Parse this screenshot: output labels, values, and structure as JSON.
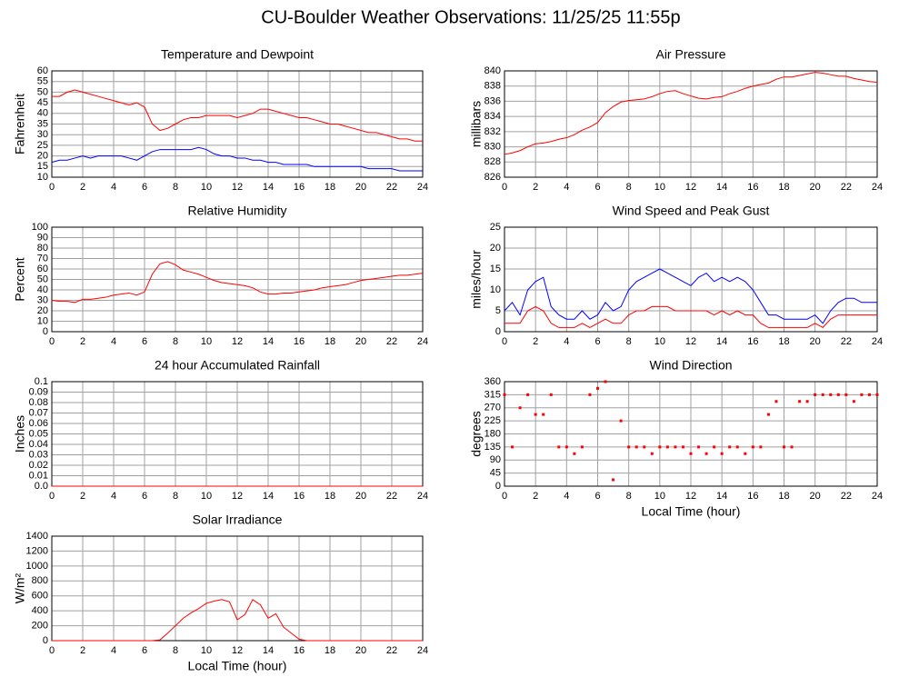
{
  "title": "CU-Boulder Weather Observations: 11/25/25 11:55p",
  "chart_data": [
    {
      "type": "line",
      "title": "Temperature and Dewpoint",
      "ylabel": "Fahrenheit",
      "x": [
        0,
        0.5,
        1,
        1.5,
        2,
        2.5,
        3,
        3.5,
        4,
        4.5,
        5,
        5.5,
        6,
        6.5,
        7,
        7.5,
        8,
        8.5,
        9,
        9.5,
        10,
        10.5,
        11,
        11.5,
        12,
        12.5,
        13,
        13.5,
        14,
        14.5,
        15,
        15.5,
        16,
        16.5,
        17,
        17.5,
        18,
        18.5,
        19,
        19.5,
        20,
        20.5,
        21,
        21.5,
        22,
        22.5,
        23,
        23.5,
        24
      ],
      "series": [
        {
          "color": "#ff0000",
          "values": [
            48,
            48,
            50,
            51,
            50,
            49,
            48,
            47,
            46,
            45,
            44,
            45,
            43,
            35,
            32,
            33,
            35,
            37,
            38,
            38,
            39,
            39,
            39,
            39,
            38,
            39,
            40,
            42,
            42,
            41,
            40,
            39,
            38,
            38,
            37,
            36,
            35,
            35,
            34,
            33,
            32,
            31,
            31,
            30,
            29,
            28,
            28,
            27,
            27
          ]
        },
        {
          "color": "#0000ff",
          "values": [
            17,
            18,
            18,
            19,
            20,
            19,
            20,
            20,
            20,
            20,
            19,
            18,
            20,
            22,
            23,
            23,
            23,
            23,
            23,
            24,
            23,
            21,
            20,
            20,
            19,
            19,
            18,
            18,
            17,
            17,
            16,
            16,
            16,
            16,
            15,
            15,
            15,
            15,
            15,
            15,
            15,
            14,
            14,
            14,
            14,
            13,
            13,
            13,
            13
          ]
        }
      ],
      "xlim": [
        0,
        24
      ],
      "xticks": [
        0,
        2,
        4,
        6,
        8,
        10,
        12,
        14,
        16,
        18,
        20,
        22,
        24
      ],
      "ylim": [
        10,
        60
      ],
      "yticks": [
        10,
        15,
        20,
        25,
        30,
        35,
        40,
        45,
        50,
        55,
        60
      ],
      "grid": true
    },
    {
      "type": "line",
      "title": "Air Pressure",
      "ylabel": "millibars",
      "x": [
        0,
        0.5,
        1,
        1.5,
        2,
        2.5,
        3,
        3.5,
        4,
        4.5,
        5,
        5.5,
        6,
        6.5,
        7,
        7.5,
        8,
        8.5,
        9,
        9.5,
        10,
        10.5,
        11,
        11.5,
        12,
        12.5,
        13,
        13.5,
        14,
        14.5,
        15,
        15.5,
        16,
        16.5,
        17,
        17.5,
        18,
        18.5,
        19,
        19.5,
        20,
        20.5,
        21,
        21.5,
        22,
        22.5,
        23,
        23.5,
        24
      ],
      "series": [
        {
          "color": "#ff0000",
          "values": [
            829,
            829.2,
            829.5,
            830,
            830.4,
            830.5,
            830.7,
            831,
            831.2,
            831.6,
            832.2,
            832.6,
            833.2,
            834.5,
            835.3,
            835.9,
            836.1,
            836.2,
            836.3,
            836.6,
            837,
            837.3,
            837.4,
            837,
            836.7,
            836.4,
            836.3,
            836.5,
            836.6,
            837,
            837.3,
            837.7,
            838,
            838.2,
            838.4,
            838.9,
            839.2,
            839.2,
            839.4,
            839.6,
            839.8,
            839.7,
            839.5,
            839.3,
            839.3,
            839,
            838.8,
            838.6,
            838.5
          ]
        }
      ],
      "xlim": [
        0,
        24
      ],
      "xticks": [
        0,
        2,
        4,
        6,
        8,
        10,
        12,
        14,
        16,
        18,
        20,
        22,
        24
      ],
      "ylim": [
        826,
        840
      ],
      "yticks": [
        826,
        828,
        830,
        832,
        834,
        836,
        838,
        840
      ],
      "grid": true
    },
    {
      "type": "line",
      "title": "Relative Humidity",
      "ylabel": "Percent",
      "x": [
        0,
        0.5,
        1,
        1.5,
        2,
        2.5,
        3,
        3.5,
        4,
        4.5,
        5,
        5.5,
        6,
        6.5,
        7,
        7.5,
        8,
        8.5,
        9,
        9.5,
        10,
        10.5,
        11,
        11.5,
        12,
        12.5,
        13,
        13.5,
        14,
        14.5,
        15,
        15.5,
        16,
        16.5,
        17,
        17.5,
        18,
        18.5,
        19,
        19.5,
        20,
        20.5,
        21,
        21.5,
        22,
        22.5,
        23,
        23.5,
        24
      ],
      "series": [
        {
          "color": "#ff0000",
          "values": [
            30,
            29,
            29,
            28,
            31,
            31,
            32,
            33,
            35,
            36,
            37,
            35,
            38,
            55,
            65,
            67,
            64,
            59,
            57,
            55,
            52,
            49,
            47,
            46,
            45,
            44,
            42,
            38,
            36,
            36,
            37,
            37,
            38,
            39,
            40,
            42,
            43,
            44,
            45,
            47,
            49,
            50,
            51,
            52,
            53,
            54,
            54,
            55,
            56
          ]
        }
      ],
      "xlim": [
        0,
        24
      ],
      "xticks": [
        0,
        2,
        4,
        6,
        8,
        10,
        12,
        14,
        16,
        18,
        20,
        22,
        24
      ],
      "ylim": [
        0,
        100
      ],
      "yticks": [
        0,
        10,
        20,
        30,
        40,
        50,
        60,
        70,
        80,
        90,
        100
      ],
      "grid": true
    },
    {
      "type": "line",
      "title": "Wind Speed and Peak Gust",
      "ylabel": "miles/hour",
      "x": [
        0,
        0.5,
        1,
        1.5,
        2,
        2.5,
        3,
        3.5,
        4,
        4.5,
        5,
        5.5,
        6,
        6.5,
        7,
        7.5,
        8,
        8.5,
        9,
        9.5,
        10,
        10.5,
        11,
        11.5,
        12,
        12.5,
        13,
        13.5,
        14,
        14.5,
        15,
        15.5,
        16,
        16.5,
        17,
        17.5,
        18,
        18.5,
        19,
        19.5,
        20,
        20.5,
        21,
        21.5,
        22,
        22.5,
        23,
        23.5,
        24
      ],
      "series": [
        {
          "color": "#0000ff",
          "values": [
            5,
            7,
            4,
            10,
            12,
            13,
            6,
            4,
            3,
            3,
            5,
            3,
            4,
            7,
            5,
            6,
            10,
            12,
            13,
            14,
            15,
            14,
            13,
            12,
            11,
            13,
            14,
            12,
            13,
            12,
            13,
            12,
            10,
            7,
            4,
            4,
            3,
            3,
            3,
            3,
            4,
            2,
            5,
            7,
            8,
            8,
            7,
            7,
            7
          ]
        },
        {
          "color": "#ff0000",
          "values": [
            2,
            2,
            2,
            5,
            6,
            5,
            2,
            1,
            1,
            1,
            2,
            1,
            2,
            3,
            2,
            2,
            4,
            5,
            5,
            6,
            6,
            6,
            5,
            5,
            5,
            5,
            5,
            4,
            5,
            4,
            5,
            4,
            4,
            2,
            1,
            1,
            1,
            1,
            1,
            1,
            2,
            1,
            3,
            4,
            4,
            4,
            4,
            4,
            4
          ]
        }
      ],
      "xlim": [
        0,
        24
      ],
      "xticks": [
        0,
        2,
        4,
        6,
        8,
        10,
        12,
        14,
        16,
        18,
        20,
        22,
        24
      ],
      "ylim": [
        0,
        25
      ],
      "yticks": [
        0,
        5,
        10,
        15,
        20,
        25
      ],
      "grid": true
    },
    {
      "type": "line",
      "title": "24 hour Accumulated Rainfall",
      "ylabel": "Inches",
      "x": [
        0,
        24
      ],
      "series": [
        {
          "color": "#ff0000",
          "values": [
            0,
            0
          ]
        }
      ],
      "xlim": [
        0,
        24
      ],
      "xticks": [
        0,
        2,
        4,
        6,
        8,
        10,
        12,
        14,
        16,
        18,
        20,
        22,
        24
      ],
      "ylim": [
        0,
        0.1
      ],
      "yticks": [
        {
          "value": 0,
          "label": "0.0"
        },
        0.01,
        0.02,
        0.03,
        0.04,
        0.05,
        0.06,
        0.07,
        0.08,
        0.09,
        0.1
      ],
      "grid": true
    },
    {
      "type": "scatter",
      "title": "Wind Direction",
      "ylabel": "degrees",
      "xlabel": "Local Time (hour)",
      "x": [
        0,
        0.5,
        1,
        1.5,
        2,
        2.5,
        3,
        3.5,
        4,
        4.5,
        5,
        5.5,
        6,
        6.5,
        7,
        7.5,
        8,
        8.5,
        9,
        9.5,
        10,
        10.5,
        11,
        11.5,
        12,
        12.5,
        13,
        13.5,
        14,
        14.5,
        15,
        15.5,
        16,
        16.5,
        17,
        17.5,
        18,
        18.5,
        19,
        19.5,
        20,
        20.5,
        21,
        21.5,
        22,
        22.5,
        23,
        23.5,
        24
      ],
      "series": [
        {
          "color": "#ff0000",
          "values": [
            315,
            135,
            270,
            315,
            247,
            247,
            315,
            135,
            135,
            112,
            135,
            315,
            337,
            360,
            22,
            225,
            135,
            135,
            135,
            112,
            135,
            135,
            135,
            135,
            112,
            135,
            112,
            135,
            112,
            135,
            135,
            112,
            135,
            135,
            247,
            292,
            135,
            135,
            292,
            292,
            315,
            315,
            315,
            315,
            315,
            292,
            315,
            315,
            315
          ]
        }
      ],
      "xlim": [
        0,
        24
      ],
      "xticks": [
        0,
        2,
        4,
        6,
        8,
        10,
        12,
        14,
        16,
        18,
        20,
        22,
        24
      ],
      "ylim": [
        0,
        360
      ],
      "yticks": [
        0,
        45,
        90,
        135,
        180,
        225,
        270,
        315,
        360
      ],
      "grid": true
    },
    {
      "type": "line",
      "title": "Solar Irradiance",
      "ylabel": "W/m²",
      "xlabel": "Local Time (hour)",
      "x": [
        0,
        0.5,
        1,
        1.5,
        2,
        2.5,
        3,
        3.5,
        4,
        4.5,
        5,
        5.5,
        6,
        6.5,
        7,
        7.5,
        8,
        8.5,
        9,
        9.5,
        10,
        10.5,
        11,
        11.5,
        12,
        12.5,
        13,
        13.5,
        14,
        14.5,
        15,
        15.5,
        16,
        16.5,
        17,
        17.5,
        18,
        18.5,
        19,
        19.5,
        20,
        20.5,
        21,
        21.5,
        22,
        22.5,
        23,
        23.5,
        24
      ],
      "series": [
        {
          "color": "#ff0000",
          "values": [
            0,
            0,
            0,
            0,
            0,
            0,
            0,
            0,
            0,
            0,
            0,
            0,
            0,
            0,
            10,
            100,
            200,
            300,
            370,
            430,
            500,
            530,
            550,
            520,
            280,
            350,
            550,
            480,
            300,
            360,
            180,
            100,
            20,
            0,
            0,
            0,
            0,
            0,
            0,
            0,
            0,
            0,
            0,
            0,
            0,
            0,
            0,
            0,
            0
          ]
        }
      ],
      "xlim": [
        0,
        24
      ],
      "xticks": [
        0,
        2,
        4,
        6,
        8,
        10,
        12,
        14,
        16,
        18,
        20,
        22,
        24
      ],
      "ylim": [
        0,
        1400
      ],
      "yticks": [
        0,
        200,
        400,
        600,
        800,
        1000,
        1200,
        1400
      ],
      "grid": true
    }
  ]
}
